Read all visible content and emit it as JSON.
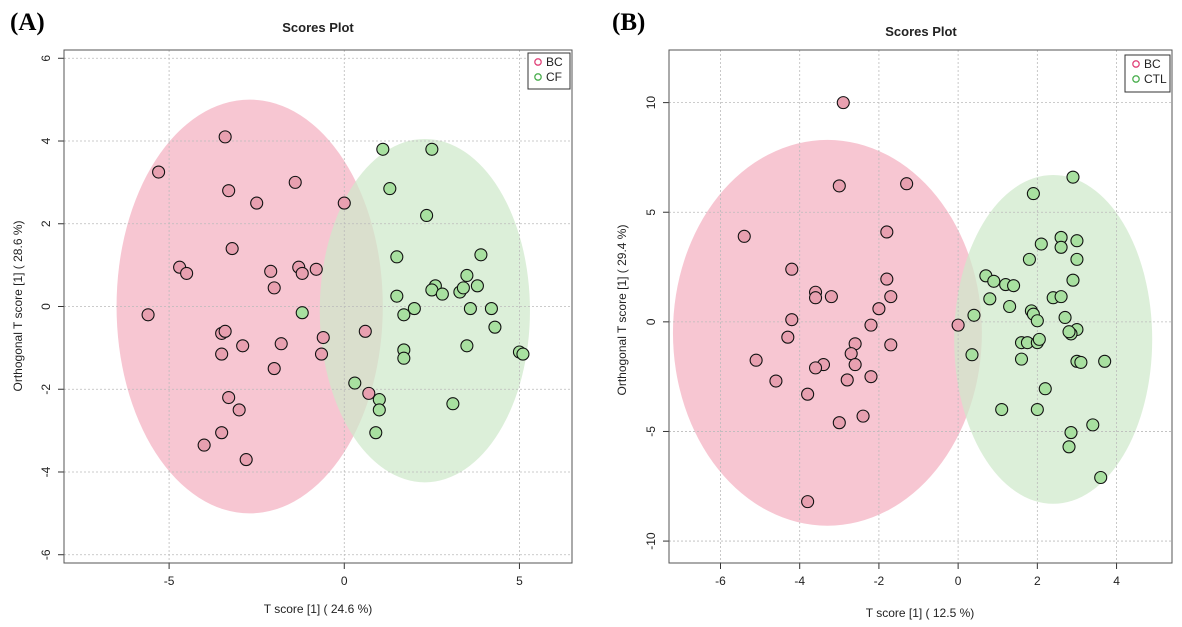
{
  "figure": {
    "panel_labels": [
      "(A)",
      "(B)"
    ]
  },
  "chart_data": [
    {
      "type": "scatter",
      "panel": "(A)",
      "title": "Scores Plot",
      "xlabel": "T score [1] ( 24.6 %)",
      "ylabel": "Orthogonal T score [1] ( 28.6 %)",
      "xlim": [
        -8,
        6.5
      ],
      "ylim": [
        -6.2,
        6.2
      ],
      "xticks": [
        -5,
        0,
        5
      ],
      "yticks": [
        -6,
        -4,
        -2,
        0,
        2,
        4,
        6
      ],
      "grid": true,
      "legend_position": "top-right",
      "series": [
        {
          "name": "BC",
          "color": "#e0457b",
          "fill": "#e8a0b0",
          "ellipse": {
            "cx": -2.7,
            "cy": 0,
            "rx": 3.8,
            "ry": 5.0,
            "color": "#f4b0c0"
          },
          "points": [
            [
              -3.4,
              4.1
            ],
            [
              -5.3,
              3.25
            ],
            [
              -1.4,
              3.0
            ],
            [
              -3.3,
              2.8
            ],
            [
              -2.5,
              2.5
            ],
            [
              -3.2,
              1.4
            ],
            [
              -4.7,
              0.95
            ],
            [
              -4.5,
              0.8
            ],
            [
              -2.1,
              0.85
            ],
            [
              -1.3,
              0.95
            ],
            [
              -1.2,
              0.8
            ],
            [
              -0.8,
              0.9
            ],
            [
              -2.0,
              0.45
            ],
            [
              -5.6,
              -0.2
            ],
            [
              -3.5,
              -0.65
            ],
            [
              -3.4,
              -0.6
            ],
            [
              -2.9,
              -0.95
            ],
            [
              -3.5,
              -1.15
            ],
            [
              -1.8,
              -0.9
            ],
            [
              -0.6,
              -0.75
            ],
            [
              -0.65,
              -1.15
            ],
            [
              -2.0,
              -1.5
            ],
            [
              -3.3,
              -2.2
            ],
            [
              -3.0,
              -2.5
            ],
            [
              -3.5,
              -3.05
            ],
            [
              -4.0,
              -3.35
            ],
            [
              -2.8,
              -3.7
            ],
            [
              0.0,
              2.5
            ],
            [
              0.6,
              -0.6
            ],
            [
              0.7,
              -2.1
            ]
          ]
        },
        {
          "name": "CF",
          "color": "#4caf50",
          "fill": "#a8e0a0",
          "ellipse": {
            "cx": 2.3,
            "cy": -0.1,
            "rx": 3.0,
            "ry": 4.15,
            "color": "#cfe9cb"
          },
          "points": [
            [
              1.1,
              3.8
            ],
            [
              2.5,
              3.8
            ],
            [
              1.3,
              2.85
            ],
            [
              2.35,
              2.2
            ],
            [
              1.5,
              1.2
            ],
            [
              3.9,
              1.25
            ],
            [
              2.6,
              0.5
            ],
            [
              2.5,
              0.4
            ],
            [
              2.8,
              0.3
            ],
            [
              3.3,
              0.35
            ],
            [
              3.4,
              0.45
            ],
            [
              3.5,
              0.75
            ],
            [
              3.8,
              0.5
            ],
            [
              1.5,
              0.25
            ],
            [
              2.0,
              -0.05
            ],
            [
              1.7,
              -0.2
            ],
            [
              3.6,
              -0.05
            ],
            [
              4.2,
              -0.05
            ],
            [
              4.3,
              -0.5
            ],
            [
              -1.2,
              -0.15
            ],
            [
              1.7,
              -1.05
            ],
            [
              1.7,
              -1.25
            ],
            [
              3.5,
              -0.95
            ],
            [
              5.0,
              -1.1
            ],
            [
              5.1,
              -1.15
            ],
            [
              0.3,
              -1.85
            ],
            [
              1.0,
              -2.25
            ],
            [
              1.0,
              -2.5
            ],
            [
              0.9,
              -3.05
            ],
            [
              3.1,
              -2.35
            ]
          ]
        }
      ]
    },
    {
      "type": "scatter",
      "panel": "(B)",
      "title": "Scores Plot",
      "xlabel": "T score [1] ( 12.5 %)",
      "ylabel": "Orthogonal T score [1] ( 29.4 %)",
      "xlim": [
        -7.3,
        5.4
      ],
      "ylim": [
        -11,
        12.4
      ],
      "xticks": [
        -6,
        -4,
        -2,
        0,
        2,
        4
      ],
      "yticks": [
        -10,
        -5,
        0,
        5,
        10
      ],
      "grid": true,
      "legend_position": "top-right",
      "series": [
        {
          "name": "BC",
          "color": "#e0457b",
          "fill": "#e8a0b0",
          "ellipse": {
            "cx": -3.3,
            "cy": -0.5,
            "rx": 3.9,
            "ry": 8.8,
            "color": "#f4b0c0"
          },
          "points": [
            [
              -2.9,
              10.0
            ],
            [
              -3.0,
              6.2
            ],
            [
              -1.3,
              6.3
            ],
            [
              -5.4,
              3.9
            ],
            [
              -1.8,
              4.1
            ],
            [
              -4.2,
              2.4
            ],
            [
              -3.6,
              1.35
            ],
            [
              -3.6,
              1.1
            ],
            [
              -3.2,
              1.15
            ],
            [
              -1.8,
              1.95
            ],
            [
              -1.7,
              1.15
            ],
            [
              -2.0,
              0.6
            ],
            [
              -4.2,
              0.1
            ],
            [
              -2.2,
              -0.15
            ],
            [
              -4.3,
              -0.7
            ],
            [
              -2.6,
              -1.0
            ],
            [
              -2.7,
              -1.45
            ],
            [
              -1.7,
              -1.05
            ],
            [
              -5.1,
              -1.75
            ],
            [
              -3.4,
              -1.95
            ],
            [
              -3.6,
              -2.1
            ],
            [
              -2.6,
              -1.95
            ],
            [
              -2.2,
              -2.5
            ],
            [
              -2.8,
              -2.65
            ],
            [
              -4.6,
              -2.7
            ],
            [
              -3.8,
              -3.3
            ],
            [
              -2.4,
              -4.3
            ],
            [
              -3.0,
              -4.6
            ],
            [
              -3.8,
              -8.2
            ],
            [
              0.0,
              -0.15
            ]
          ]
        },
        {
          "name": "CTL",
          "color": "#4caf50",
          "fill": "#a8e0a0",
          "ellipse": {
            "cx": 2.4,
            "cy": -0.8,
            "rx": 2.5,
            "ry": 7.5,
            "color": "#cfe9cb"
          },
          "points": [
            [
              2.9,
              6.6
            ],
            [
              1.9,
              5.85
            ],
            [
              2.6,
              3.85
            ],
            [
              3.0,
              3.7
            ],
            [
              2.1,
              3.55
            ],
            [
              2.6,
              3.4
            ],
            [
              3.0,
              2.85
            ],
            [
              1.8,
              2.85
            ],
            [
              0.7,
              2.1
            ],
            [
              0.9,
              1.85
            ],
            [
              1.2,
              1.7
            ],
            [
              1.4,
              1.65
            ],
            [
              2.9,
              1.9
            ],
            [
              2.4,
              1.1
            ],
            [
              2.6,
              1.15
            ],
            [
              0.8,
              1.05
            ],
            [
              1.3,
              0.7
            ],
            [
              1.85,
              0.5
            ],
            [
              1.9,
              0.35
            ],
            [
              2.0,
              0.05
            ],
            [
              2.7,
              0.2
            ],
            [
              0.4,
              0.3
            ],
            [
              3.0,
              -0.35
            ],
            [
              2.85,
              -0.55
            ],
            [
              2.8,
              -0.45
            ],
            [
              1.6,
              -0.95
            ],
            [
              1.75,
              -0.95
            ],
            [
              2.0,
              -0.95
            ],
            [
              2.05,
              -0.8
            ],
            [
              0.35,
              -1.5
            ],
            [
              1.6,
              -1.7
            ],
            [
              3.0,
              -1.8
            ],
            [
              3.1,
              -1.85
            ],
            [
              3.7,
              -1.8
            ],
            [
              2.2,
              -3.05
            ],
            [
              1.1,
              -4.0
            ],
            [
              2.0,
              -4.0
            ],
            [
              3.4,
              -4.7
            ],
            [
              2.85,
              -5.05
            ],
            [
              2.8,
              -5.7
            ],
            [
              3.6,
              -7.1
            ]
          ]
        }
      ]
    }
  ]
}
